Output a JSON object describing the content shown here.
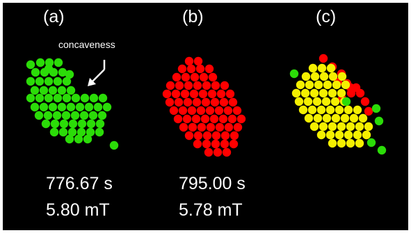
{
  "panels": [
    {
      "label": "(a)",
      "time": "776.67 s",
      "field": "5.80 mT"
    },
    {
      "label": "(b)",
      "time": "795.00 s",
      "field": "5.78 mT"
    },
    {
      "label": "(c)"
    }
  ],
  "annotation": {
    "text": "concaveness"
  },
  "colors": {
    "background": "#000000",
    "green": "#2bdc08",
    "red": "#ff0000",
    "yellow": "#f5f000",
    "text": "#ffffff"
  }
}
